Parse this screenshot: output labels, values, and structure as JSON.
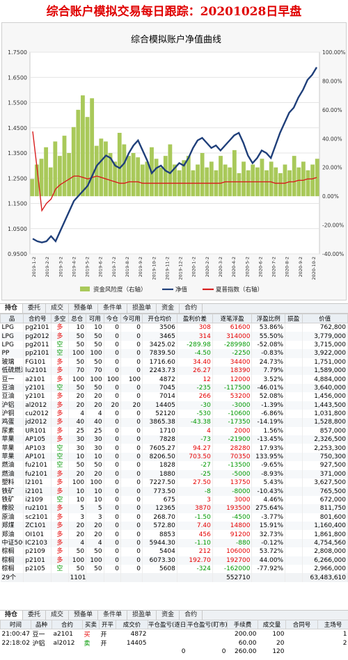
{
  "page_title": "综合账户模拟交易每日跟踪：20201028日早盘",
  "chart_data": {
    "type": "bar+line",
    "title": "综合模拟账户净值曲线",
    "y_left_ticks": [
      "1.7500",
      "1.6500",
      "1.5500",
      "1.4500",
      "1.3500",
      "1.2500",
      "1.1500",
      "1.0500",
      "0.9500"
    ],
    "y_left_range": [
      0.95,
      1.75
    ],
    "y_right_ticks": [
      "100.00%",
      "80.00%",
      "60.00%",
      "40.00%",
      "20.00%",
      "0.00%",
      "-20.00%",
      "-40.00%"
    ],
    "y_right_range": [
      -40,
      100
    ],
    "x_ticks": [
      "2019-1-2",
      "2019-2-2",
      "2019-3-2",
      "2019-4-2",
      "2019-5-2",
      "2019-6-2",
      "2019-7-2",
      "2019-8-2",
      "2019-9-2",
      "2019-10-2",
      "2019-11-2",
      "2019-12-2",
      "2020-1-2",
      "2020-2-2",
      "2020-3-2",
      "2020-4-2",
      "2020-5-2",
      "2020-6-2",
      "2020-7-2",
      "2020-8-2",
      "2020-9-2",
      "2020-10-2"
    ],
    "legend": [
      {
        "label": "资金风险度（右轴）",
        "color": "#a9c95a"
      },
      {
        "label": "净值",
        "color": "#1f3f7a"
      },
      {
        "label": "夏普指数（右轴）",
        "color": "#d81e1e"
      }
    ],
    "net_value": [
      1.01,
      1.0,
      0.995,
      1.0,
      1.02,
      1.0,
      1.04,
      1.08,
      1.12,
      1.16,
      1.18,
      1.2,
      1.22,
      1.26,
      1.3,
      1.32,
      1.34,
      1.33,
      1.3,
      1.29,
      1.31,
      1.35,
      1.38,
      1.4,
      1.36,
      1.32,
      1.27,
      1.29,
      1.3,
      1.28,
      1.27,
      1.29,
      1.31,
      1.3,
      1.33,
      1.37,
      1.4,
      1.41,
      1.39,
      1.37,
      1.38,
      1.36,
      1.38,
      1.4,
      1.42,
      1.43,
      1.39,
      1.34,
      1.31,
      1.33,
      1.36,
      1.35,
      1.33,
      1.38,
      1.43,
      1.47,
      1.51,
      1.53,
      1.57,
      1.6,
      1.64,
      1.66,
      1.69
    ],
    "sharpe_pct": [
      45,
      18,
      -10,
      -5,
      -2,
      5,
      8,
      10,
      12,
      14,
      14,
      13,
      12,
      13,
      14,
      13,
      12,
      11,
      10,
      9,
      9,
      10,
      10,
      10,
      9,
      9,
      9,
      9,
      9,
      9,
      9,
      9,
      9,
      9,
      9,
      9,
      9,
      9,
      9,
      9,
      9,
      9,
      10,
      10,
      10,
      10,
      10,
      10,
      10,
      10,
      10,
      10,
      10,
      9,
      9,
      9,
      10,
      10,
      11,
      11,
      12,
      12,
      13
    ],
    "risk_pct": [
      12,
      22,
      26,
      34,
      20,
      38,
      28,
      42,
      30,
      48,
      60,
      70,
      55,
      68,
      35,
      40,
      38,
      30,
      24,
      44,
      36,
      28,
      30,
      27,
      22,
      24,
      34,
      26,
      20,
      28,
      36,
      22,
      18,
      25,
      28,
      18,
      22,
      30,
      20,
      24,
      18,
      28,
      22,
      20,
      32,
      16,
      24,
      18,
      22,
      20,
      26,
      18,
      24,
      20,
      16,
      22,
      18,
      28,
      20,
      24,
      18,
      22,
      26
    ]
  },
  "tabs_top": [
    "持仓",
    "委托",
    "成交",
    "预备单",
    "条件单",
    "损盈单",
    "资金",
    "合约"
  ],
  "positions": {
    "headers": [
      "品",
      "合约号",
      "多空",
      "总仓",
      "可用",
      "今仓",
      "今可用",
      "开仓均价",
      "盈利价差",
      "逐笔浮盈",
      "浮盈比例",
      "损盈",
      "价值"
    ],
    "rows": [
      [
        "LPG",
        "pg2101",
        "多",
        "10",
        "10",
        "0",
        "0",
        "3506",
        "308",
        "61600",
        "53.86%",
        "",
        "762,800"
      ],
      [
        "LPG",
        "pg2012",
        "多",
        "50",
        "50",
        "0",
        "0",
        "3465",
        "314",
        "314000",
        "55.50%",
        "",
        "3,779,000"
      ],
      [
        "LPG",
        "pg2011",
        "空",
        "50",
        "50",
        "0",
        "0",
        "3425.02",
        "-289.98",
        "-289980",
        "-52.08%",
        "",
        "3,715,000"
      ],
      [
        "PP",
        "pp2101",
        "空",
        "100",
        "100",
        "0",
        "0",
        "7839.50",
        "-4.50",
        "-2250",
        "-0.83%",
        "",
        "3,922,000"
      ],
      [
        "玻璃",
        "FG101",
        "多",
        "50",
        "50",
        "0",
        "0",
        "1716.60",
        "34.40",
        "34400",
        "24.73%",
        "",
        "1,751,000"
      ],
      [
        "低硫燃油",
        "lu2101",
        "多",
        "70",
        "70",
        "0",
        "0",
        "2243.73",
        "26.27",
        "18390",
        "7.79%",
        "",
        "1,589,000"
      ],
      [
        "豆一",
        "a2101",
        "多",
        "100",
        "100",
        "100",
        "100",
        "4872",
        "12",
        "12000",
        "3.52%",
        "",
        "4,884,000"
      ],
      [
        "豆油",
        "y2101",
        "空",
        "50",
        "50",
        "0",
        "0",
        "7045",
        "-235",
        "-117500",
        "-46.01%",
        "",
        "3,640,000"
      ],
      [
        "豆油",
        "y2101",
        "多",
        "20",
        "20",
        "0",
        "0",
        "7014",
        "266",
        "53200",
        "52.08%",
        "",
        "1,456,000"
      ],
      [
        "沪铝",
        "al2012",
        "多",
        "20",
        "20",
        "20",
        "20",
        "14405",
        "-30",
        "-3000",
        "-1.39%",
        "",
        "1,443,500"
      ],
      [
        "沪铜",
        "cu2012",
        "多",
        "4",
        "4",
        "0",
        "0",
        "52120",
        "-530",
        "-10600",
        "-6.86%",
        "",
        "1,031,800"
      ],
      [
        "鸡蛋",
        "jd2012",
        "多",
        "40",
        "40",
        "0",
        "0",
        "3865.38",
        "-43.38",
        "-17350",
        "-14.19%",
        "",
        "1,528,800"
      ],
      [
        "尿素",
        "UR101",
        "多",
        "25",
        "25",
        "0",
        "0",
        "1710",
        "4",
        "2000",
        "1.56%",
        "",
        "857,000"
      ],
      [
        "苹果",
        "AP105",
        "多",
        "30",
        "30",
        "0",
        "0",
        "7828",
        "-73",
        "-21900",
        "-13.45%",
        "",
        "2,326,500"
      ],
      [
        "苹果",
        "AP103",
        "空",
        "30",
        "30",
        "0",
        "0",
        "7605.27",
        "94.27",
        "28280",
        "17.93%",
        "",
        "2,253,300"
      ],
      [
        "苹果",
        "AP101",
        "空",
        "10",
        "10",
        "0",
        "0",
        "8206.50",
        "703.50",
        "70350",
        "133.95%",
        "",
        "750,300"
      ],
      [
        "燃油",
        "fu2101",
        "空",
        "50",
        "50",
        "0",
        "0",
        "1828",
        "-27",
        "-13500",
        "-9.65%",
        "",
        "927,500"
      ],
      [
        "燃油",
        "fu2101",
        "多",
        "20",
        "20",
        "0",
        "0",
        "1880",
        "-25",
        "-5000",
        "-8.93%",
        "",
        "371,000"
      ],
      [
        "塑料",
        "l2101",
        "多",
        "100",
        "100",
        "0",
        "0",
        "7227.50",
        "27.50",
        "13750",
        "5.43%",
        "",
        "3,627,500"
      ],
      [
        "铁矿",
        "i2101",
        "多",
        "10",
        "10",
        "0",
        "0",
        "773.50",
        "-8",
        "-8000",
        "-10.43%",
        "",
        "765,500"
      ],
      [
        "铁矿",
        "i2109",
        "空",
        "10",
        "10",
        "0",
        "0",
        "675",
        "3",
        "3000",
        "4.46%",
        "",
        "672,000"
      ],
      [
        "橡胶",
        "ru2101",
        "多",
        "5",
        "5",
        "0",
        "0",
        "12365",
        "3870",
        "193500",
        "275.64%",
        "",
        "811,750"
      ],
      [
        "原油",
        "sc2101",
        "多",
        "3",
        "3",
        "0",
        "0",
        "268.70",
        "-1.50",
        "-4500",
        "-3.77%",
        "",
        "801,600"
      ],
      [
        "郑煤",
        "ZC101",
        "多",
        "20",
        "20",
        "0",
        "0",
        "572.80",
        "7.40",
        "14800",
        "15.91%",
        "",
        "1,160,400"
      ],
      [
        "郑油",
        "OI101",
        "多",
        "20",
        "20",
        "0",
        "0",
        "8853",
        "456",
        "91200",
        "32.73%",
        "",
        "1,861,800"
      ],
      [
        "中证500",
        "IC2103",
        "多",
        "4",
        "4",
        "0",
        "0",
        "5944.30",
        "-1.10",
        "-880",
        "-0.12%",
        "",
        "4,754,560"
      ],
      [
        "棕榈",
        "p2109",
        "多",
        "50",
        "50",
        "0",
        "0",
        "5404",
        "212",
        "106000",
        "53.72%",
        "",
        "2,808,000"
      ],
      [
        "棕榈",
        "p2101",
        "多",
        "100",
        "100",
        "0",
        "0",
        "6073.30",
        "192.70",
        "192700",
        "44.00%",
        "",
        "6,266,000"
      ],
      [
        "棕榈",
        "p2105",
        "空",
        "50",
        "50",
        "0",
        "0",
        "5608",
        "-324",
        "-162000",
        "-77.92%",
        "",
        "2,966,000"
      ]
    ],
    "summary": {
      "count": "29个",
      "total_pos": "1101",
      "float_total": "552710",
      "value_total": "63,483,610"
    }
  },
  "tabs_bottom": [
    "持仓",
    "委托",
    "成交",
    "预备单",
    "条件单",
    "损盈单",
    "资金",
    "合约"
  ],
  "trades": {
    "headers": [
      "时间",
      "品种",
      "合约",
      "买卖",
      "开平",
      "成交价",
      "平仓盈亏(逐日)",
      "平仓盈亏(盯市)",
      "手续费",
      "成交量",
      "合同号",
      "主场号"
    ],
    "rows": [
      [
        "21:00:47",
        "豆一",
        "a2101",
        "买",
        "开",
        "4872",
        "",
        "",
        "200.00",
        "100",
        "",
        "1"
      ],
      [
        "22:18:02",
        "沪铝",
        "al2012",
        "卖",
        "开",
        "14405",
        "",
        "",
        "60.00",
        "20",
        "",
        "2"
      ]
    ],
    "summary": [
      "0",
      "0",
      "260.00",
      "120"
    ]
  }
}
